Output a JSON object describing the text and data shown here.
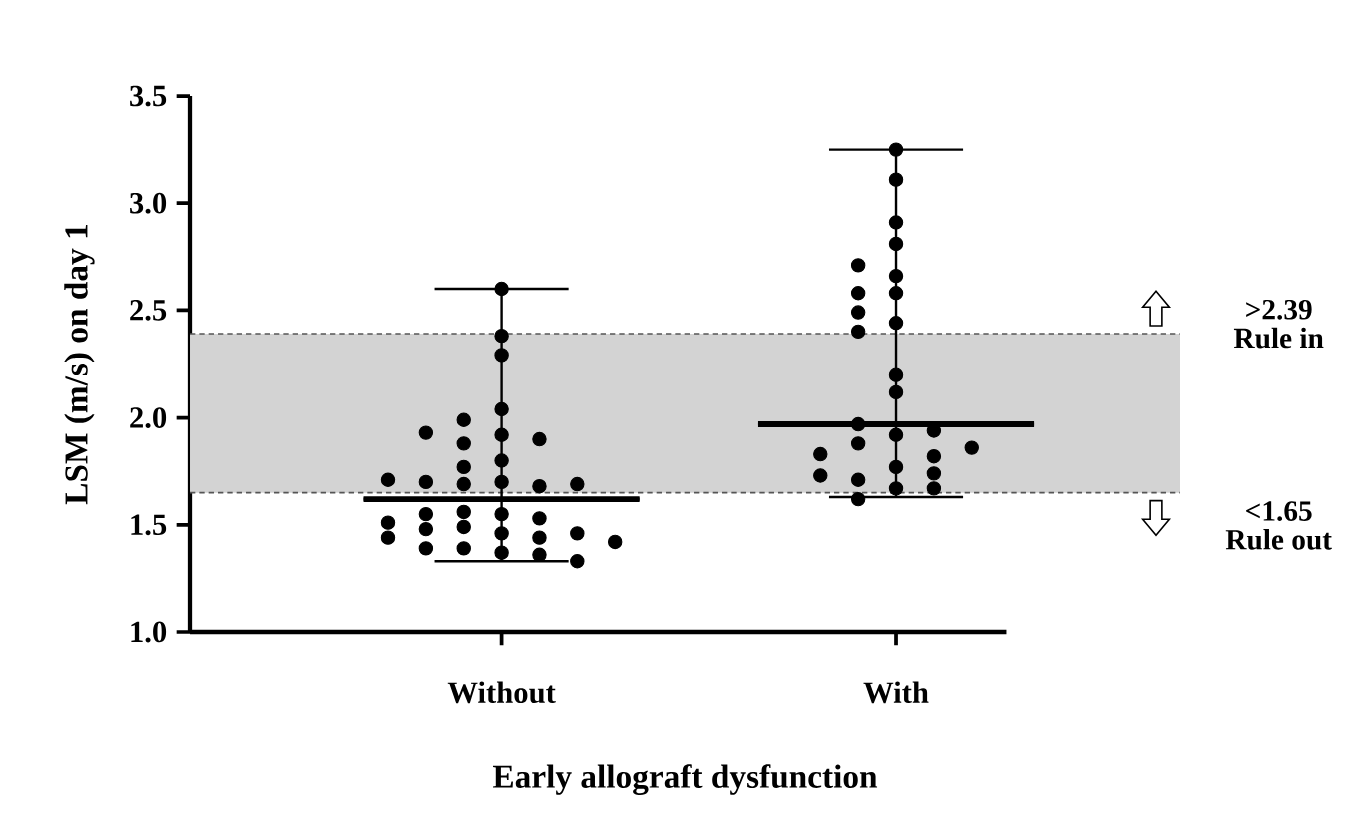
{
  "chart_data": {
    "type": "box",
    "xlabel": "Early allograft dysfunction",
    "ylabel": "LSM (m/s) on day 1",
    "categories": [
      "Without",
      "With"
    ],
    "boxes": [
      {
        "low": 1.33,
        "q1": 1.62,
        "median": 1.62,
        "q3": 1.62,
        "high": 2.6
      },
      {
        "low": 1.63,
        "q1": 1.97,
        "median": 1.97,
        "q3": 1.97,
        "high": 3.25
      }
    ],
    "series": [
      {
        "type": "scatter",
        "color": "#000000",
        "x": [
          "Without",
          "Without",
          "Without",
          "Without",
          "Without",
          "Without",
          "Without",
          "Without",
          "Without",
          "Without",
          "Without",
          "Without",
          "Without",
          "Without",
          "Without",
          "Without",
          "Without",
          "Without",
          "Without",
          "Without",
          "Without",
          "Without",
          "Without",
          "Without",
          "Without",
          "Without",
          "Without",
          "Without",
          "Without",
          "Without",
          "Without",
          "Without",
          "Without",
          "Without"
        ],
        "values": [
          2.6,
          2.38,
          2.29,
          2.04,
          1.92,
          1.8,
          1.7,
          1.55,
          1.46,
          1.37,
          1.99,
          1.88,
          1.77,
          1.69,
          1.49,
          1.39,
          1.68,
          1.53,
          1.44,
          1.36,
          1.56,
          1.48,
          1.9,
          1.7,
          1.55,
          1.46,
          1.39,
          1.93,
          1.69,
          1.44,
          1.33,
          1.71,
          1.51,
          1.42
        ]
      },
      {
        "type": "scatter",
        "color": "#000000",
        "x": [
          "With",
          "With",
          "With",
          "With",
          "With",
          "With",
          "With",
          "With",
          "With",
          "With",
          "With",
          "With",
          "With",
          "With",
          "With",
          "With",
          "With",
          "With",
          "With",
          "With",
          "With",
          "With",
          "With",
          "With",
          "With",
          "With",
          "With"
        ],
        "values": [
          3.25,
          3.11,
          2.91,
          2.81,
          2.66,
          2.44,
          2.2,
          2.12,
          1.92,
          1.77,
          1.67,
          2.71,
          2.49,
          2.4,
          1.97,
          1.88,
          1.71,
          1.62,
          2.58,
          2.58,
          1.82,
          1.74,
          1.94,
          1.83,
          1.67,
          1.86,
          1.73
        ]
      }
    ],
    "ylim": [
      1.0,
      3.5
    ],
    "yticks": [
      {
        "value": 1.0,
        "label": "1.0"
      },
      {
        "value": 1.5,
        "label": "1.5"
      },
      {
        "value": 2.0,
        "label": "2.0"
      },
      {
        "value": 2.5,
        "label": "2.5"
      },
      {
        "value": 3.0,
        "label": "3.0"
      },
      {
        "value": 3.5,
        "label": "3.5"
      }
    ],
    "bands": [
      {
        "axis": "y",
        "from": 1.65,
        "to": 2.39,
        "color": "#d3d3d3"
      }
    ],
    "ref_lines": [
      {
        "axis": "y",
        "value": 2.39,
        "label": ">2.39",
        "line_style": "dashed",
        "color": "#555555"
      },
      {
        "axis": "y",
        "value": 1.65,
        "label": "<1.65",
        "line_style": "dashed",
        "color": "#555555"
      }
    ],
    "annotations": [
      "Rule in",
      "Rule out"
    ],
    "grid": false
  }
}
